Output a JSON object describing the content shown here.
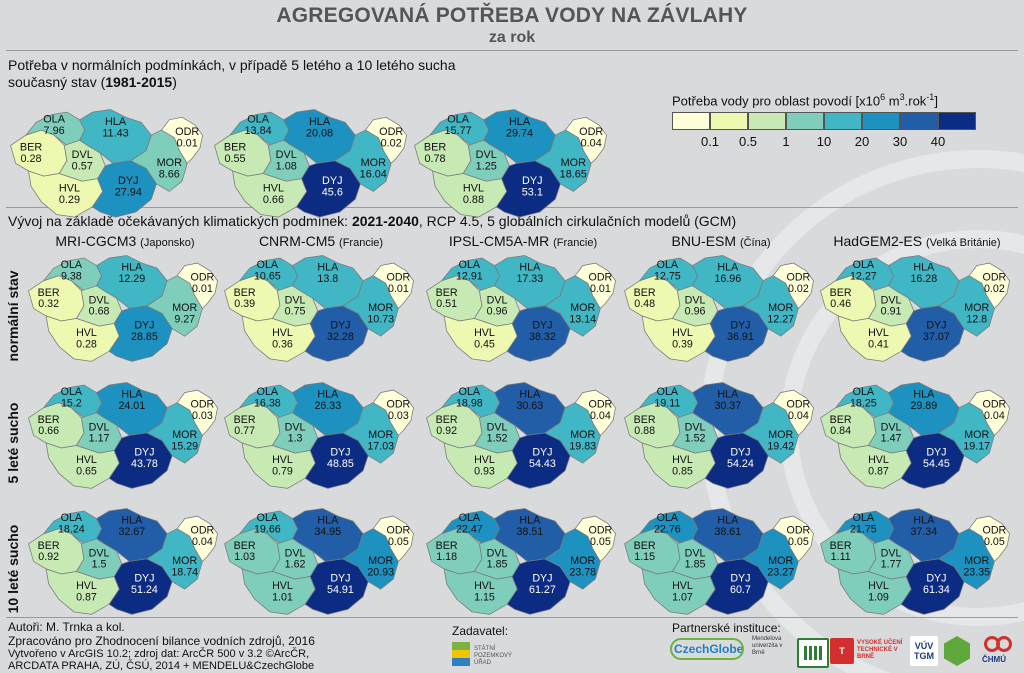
{
  "header": {
    "title": "AGREGOVANÁ POTŘEBA VODY NA ZÁVLAHY",
    "subtitle": "za rok"
  },
  "current": {
    "line1": "Potřeba v normálních podmínkách, v případě 5 letého a 10 letého sucha",
    "line2_prefix": "současný stav (",
    "line2_bold": "1981-2015",
    "line2_suffix": ")",
    "maps": [
      {
        "OLA": "7.96",
        "HLA": "11.43",
        "BER": "0.28",
        "DVL": "0.57",
        "ODR": "0.01",
        "HVL": "0.29",
        "DYJ": "27.94",
        "MOR": "8.66"
      },
      {
        "OLA": "13.84",
        "HLA": "20.08",
        "BER": "0.55",
        "DVL": "1.08",
        "ODR": "0.02",
        "HVL": "0.66",
        "DYJ": "45.6",
        "MOR": "16.04"
      },
      {
        "OLA": "15.77",
        "HLA": "29.74",
        "BER": "0.78",
        "DVL": "1.25",
        "ODR": "0.04",
        "HVL": "0.88",
        "DYJ": "53.1",
        "MOR": "18.65"
      }
    ]
  },
  "legend": {
    "title_prefix": "Potřeba vody pro oblast povodí [x10",
    "title_sup1": "6",
    "title_mid": " m",
    "title_sup2": "3",
    "title_mid2": ".rok",
    "title_sup3": "-1",
    "title_suffix": "]",
    "ticks": [
      "0.1",
      "0.5",
      "1",
      "10",
      "20",
      "30",
      "40"
    ],
    "colors": [
      "#ffffd9",
      "#edf8b1",
      "#c7e9b4",
      "#7fcdbb",
      "#41b6c4",
      "#1d91c0",
      "#225ea8",
      "#0c2c84"
    ]
  },
  "future": {
    "line_prefix": "Vývoj na základě očekávaných klimatických podmínek: ",
    "line_bold": "2021-2040",
    "line_suffix": ", RCP 4.5, 5 globálních cirkulačních modelů (GCM)",
    "models": [
      {
        "name": "MRI-CGCM3",
        "country": "(Japonsko)"
      },
      {
        "name": "CNRM-CM5",
        "country": "(Francie)"
      },
      {
        "name": "IPSL-CM5A-MR",
        "country": "(Francie)"
      },
      {
        "name": "BNU-ESM",
        "country": "(Čína)"
      },
      {
        "name": "HadGEM2-ES",
        "country": "(Velká Británie)"
      }
    ],
    "row_labels": [
      "normální stav",
      "5 leté sucho",
      "10 leté sucho"
    ],
    "maps": [
      [
        {
          "OLA": "9.38",
          "HLA": "12.29",
          "BER": "0.32",
          "DVL": "0.68",
          "ODR": "0.01",
          "HVL": "0.28",
          "DYJ": "28.85",
          "MOR": "9.27"
        },
        {
          "OLA": "10.65",
          "HLA": "13.8",
          "BER": "0.39",
          "DVL": "0.75",
          "ODR": "0.01",
          "HVL": "0.36",
          "DYJ": "32.28",
          "MOR": "10.73"
        },
        {
          "OLA": "12.91",
          "HLA": "17.33",
          "BER": "0.51",
          "DVL": "0.96",
          "ODR": "0.01",
          "HVL": "0.45",
          "DYJ": "38.32",
          "MOR": "13.14"
        },
        {
          "OLA": "12.75",
          "HLA": "16.96",
          "BER": "0.48",
          "DVL": "0.96",
          "ODR": "0.02",
          "HVL": "0.39",
          "DYJ": "36.91",
          "MOR": "12.27"
        },
        {
          "OLA": "12.27",
          "HLA": "16.28",
          "BER": "0.46",
          "DVL": "0.91",
          "ODR": "0.02",
          "HVL": "0.41",
          "DYJ": "37.07",
          "MOR": "12.8"
        }
      ],
      [
        {
          "OLA": "15.2",
          "HLA": "24.01",
          "BER": "0.66",
          "DVL": "1.17",
          "ODR": "0.03",
          "HVL": "0.65",
          "DYJ": "43.78",
          "MOR": "15.29"
        },
        {
          "OLA": "16.38",
          "HLA": "26.33",
          "BER": "0.77",
          "DVL": "1.3",
          "ODR": "0.03",
          "HVL": "0.79",
          "DYJ": "48.85",
          "MOR": "17.03"
        },
        {
          "OLA": "18.98",
          "HLA": "30.63",
          "BER": "0.92",
          "DVL": "1.52",
          "ODR": "0.04",
          "HVL": "0.93",
          "DYJ": "54.43",
          "MOR": "19.83"
        },
        {
          "OLA": "19.11",
          "HLA": "30.37",
          "BER": "0.88",
          "DVL": "1.52",
          "ODR": "0.04",
          "HVL": "0.85",
          "DYJ": "54.24",
          "MOR": "19.42"
        },
        {
          "OLA": "18.25",
          "HLA": "29.89",
          "BER": "0.84",
          "DVL": "1.47",
          "ODR": "0.04",
          "HVL": "0.87",
          "DYJ": "54.45",
          "MOR": "19.17"
        }
      ],
      [
        {
          "OLA": "18.24",
          "HLA": "32.67",
          "BER": "0.92",
          "DVL": "1.5",
          "ODR": "0.04",
          "HVL": "0.87",
          "DYJ": "51.24",
          "MOR": "18.74"
        },
        {
          "OLA": "19.66",
          "HLA": "34.95",
          "BER": "1.03",
          "DVL": "1.62",
          "ODR": "0.05",
          "HVL": "1.01",
          "DYJ": "54.91",
          "MOR": "20.93"
        },
        {
          "OLA": "22.47",
          "HLA": "38.51",
          "BER": "1.18",
          "DVL": "1.85",
          "ODR": "0.05",
          "HVL": "1.15",
          "DYJ": "61.27",
          "MOR": "23.78"
        },
        {
          "OLA": "22.76",
          "HLA": "38.61",
          "BER": "1.15",
          "DVL": "1.85",
          "ODR": "0.05",
          "HVL": "1.07",
          "DYJ": "60.7",
          "MOR": "23.27"
        },
        {
          "OLA": "21.75",
          "HLA": "37.34",
          "BER": "1.11",
          "DVL": "1.77",
          "ODR": "0.05",
          "HVL": "1.09",
          "DYJ": "61.34",
          "MOR": "23.35"
        }
      ]
    ]
  },
  "footer": {
    "authors": "Autoři: M. Trnka a kol.",
    "prepared": "Zpracováno pro Zhodnocení bilance vodních zdrojů, 2016",
    "created": "Vytvořeno v ArcGIS 10.2; zdroj dat: ArcČR 500 v 3.2 ©ArcČR,",
    "created2": "ARCDATA PRAHA, ZÚ, ČSÚ, 2014 + MENDELU&CzechGlobe",
    "client_label": "Zadavatel:",
    "client_logo": "STÁTNÍ POZEMKOVÝ ÚŘAD",
    "partners_label": "Partnerské instituce:",
    "partner_czechglobe": "CzechGlobe",
    "partner_mendelu": "Mendelova univerzita v Brně",
    "partner_vut": "VYSOKÉ UČENÍ TECHNICKÉ V BRNĚ",
    "partner_vuv": "VÚV TGM",
    "partner_chmu": "ČHMÚ"
  }
}
